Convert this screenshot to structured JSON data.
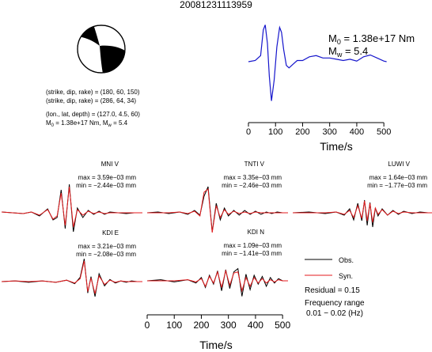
{
  "title": "20081231113959",
  "mechanism": {
    "line1": "(strike, dip, rake) = (180, 60, 150)",
    "line2": "(strike, dip, rake) = (286, 64, 34)",
    "line3": "(lon., lat, depth) = (127.0, 4.5, 60)",
    "m0_prefix": "M",
    "m0_sub": "0",
    "m0_value": " = 1.38e+17 Nm, M",
    "mw_sub": "w",
    "mw_value": " = 5.4"
  },
  "stf": {
    "m0_label": "M",
    "m0_sub": "0",
    "m0_text": " = 1.38e+17 Nm",
    "mw_label": "M",
    "mw_sub": "w",
    "mw_text": " = 5.4",
    "xlabel": "Time/s"
  },
  "stations": [
    {
      "name": "MNI V",
      "max": "max = 3.59e−03 mm",
      "min": "min = −2.44e−03 mm"
    },
    {
      "name": "TNTI V",
      "max": "max = 3.35e−03 mm",
      "min": "min = −2.46e−03 mm"
    },
    {
      "name": "LUWI V",
      "max": "max = 1.64e−03 mm",
      "min": "min = −1.77e−03 mm"
    },
    {
      "name": "KDI E",
      "max": "max = 3.21e−03 mm",
      "min": "min = −2.08e−03 mm"
    },
    {
      "name": "KDI N",
      "max": "max = 1.09e−03 mm",
      "min": "min = −1.41e−03 mm"
    }
  ],
  "bottom_axis": {
    "xlabel": "Time/s"
  },
  "legend": {
    "obs_label": "Obs.",
    "syn_label": "Syn.",
    "residual": "Residual = 0.15",
    "freq_title": "Frequency range",
    "freq_value": "0.01 − 0.02 (Hz)"
  },
  "colors": {
    "obs": "#000000",
    "syn": "#e41a1c",
    "stf": "#1515cc",
    "beachball": "#000000"
  },
  "chart_data": [
    {
      "type": "line",
      "name": "source-time-function",
      "x": [
        0,
        25,
        45,
        55,
        62,
        70,
        77,
        85,
        95,
        105,
        115,
        122,
        130,
        140,
        150,
        165,
        180,
        200,
        225,
        250,
        275,
        300,
        325,
        350,
        375,
        400,
        425,
        450,
        475,
        500,
        510
      ],
      "y": [
        0.0,
        0.1,
        0.5,
        2.6,
        3.0,
        1.5,
        -1.2,
        -3.2,
        -1.5,
        1.2,
        2.8,
        2.4,
        1.0,
        -0.3,
        -0.5,
        -0.2,
        0.1,
        0.1,
        0.4,
        0.5,
        0.3,
        0.3,
        0.2,
        0.1,
        0.2,
        0.05,
        0.4,
        0.55,
        0.3,
        0.05,
        0.0
      ],
      "xlim": [
        0,
        520
      ],
      "xticks": [
        0,
        100,
        200,
        300,
        400,
        500
      ],
      "xlabel": "Time/s"
    },
    {
      "type": "line",
      "name": "waveform-comparison",
      "xlim": [
        0,
        520
      ],
      "xticks": [
        0,
        100,
        200,
        300,
        400,
        500
      ],
      "xlabel": "Time/s",
      "panels": [
        {
          "station": "MNI V",
          "series": [
            {
              "name": "Obs.",
              "x": [
                0,
                40,
                80,
                110,
                140,
                170,
                190,
                205,
                220,
                235,
                250,
                265,
                280,
                300,
                320,
                340,
                360,
                380,
                400,
                430,
                460,
                490,
                520
              ],
              "y": [
                0.1,
                0.0,
                -0.1,
                0.1,
                -0.4,
                0.5,
                -0.9,
                -0.6,
                2.9,
                -2.0,
                3.6,
                -2.4,
                0.6,
                -0.6,
                0.3,
                -0.2,
                0.2,
                -0.2,
                0.1,
                0.0,
                -0.1,
                0.0,
                0.0
              ]
            },
            {
              "name": "Syn.",
              "x": [
                0,
                40,
                80,
                110,
                140,
                170,
                190,
                205,
                220,
                235,
                250,
                265,
                280,
                300,
                320,
                340,
                360,
                380,
                400,
                430,
                460,
                490,
                520
              ],
              "y": [
                0.1,
                0.0,
                -0.1,
                0.1,
                -0.3,
                0.4,
                -0.8,
                -0.4,
                2.5,
                -1.6,
                3.3,
                -1.8,
                0.4,
                -0.3,
                0.2,
                -0.1,
                0.1,
                -0.1,
                0.0,
                0.0,
                0.0,
                0.0,
                0.0
              ]
            }
          ]
        },
        {
          "station": "TNTI V",
          "series": [
            {
              "name": "Obs.",
              "x": [
                0,
                40,
                80,
                120,
                150,
                175,
                195,
                210,
                225,
                240,
                255,
                270,
                285,
                300,
                320,
                340,
                360,
                380,
                400,
                420,
                440,
                460,
                480,
                500,
                520
              ],
              "y": [
                0.0,
                0.1,
                -0.1,
                0.1,
                -0.2,
                0.3,
                -0.3,
                2.1,
                3.3,
                -2.4,
                1.2,
                -0.9,
                0.6,
                -0.4,
                0.3,
                -0.3,
                0.3,
                -0.2,
                0.2,
                -0.2,
                0.1,
                -0.1,
                0.1,
                0.0,
                0.0
              ]
            },
            {
              "name": "Syn.",
              "x": [
                0,
                40,
                80,
                120,
                150,
                175,
                195,
                210,
                225,
                240,
                255,
                270,
                285,
                300,
                320,
                340,
                360,
                380,
                400,
                420,
                440,
                460,
                480,
                500,
                520
              ],
              "y": [
                0.0,
                0.0,
                0.0,
                0.1,
                -0.1,
                0.2,
                -0.4,
                2.6,
                3.0,
                -2.5,
                0.9,
                -0.6,
                0.4,
                -0.2,
                0.2,
                -0.1,
                0.1,
                -0.1,
                0.1,
                0.0,
                0.0,
                0.0,
                0.0,
                0.0,
                0.0
              ]
            }
          ]
        },
        {
          "station": "LUWI V",
          "series": [
            {
              "name": "Obs.",
              "x": [
                0,
                60,
                120,
                160,
                190,
                210,
                225,
                240,
                255,
                265,
                275,
                285,
                295,
                305,
                315,
                330,
                350,
                370,
                390,
                410,
                440,
                470,
                500,
                520
              ],
              "y": [
                0.0,
                0.1,
                -0.1,
                0.1,
                -0.3,
                0.5,
                -0.9,
                1.2,
                -1.0,
                1.6,
                -1.6,
                1.3,
                -1.8,
                0.6,
                -0.4,
                0.5,
                -0.3,
                0.3,
                -0.2,
                0.2,
                -0.1,
                0.1,
                0.0,
                0.0
              ]
            },
            {
              "name": "Syn.",
              "x": [
                0,
                60,
                120,
                160,
                190,
                210,
                225,
                240,
                255,
                265,
                275,
                285,
                295,
                305,
                315,
                330,
                350,
                370,
                390,
                410,
                440,
                470,
                500,
                520
              ],
              "y": [
                0.0,
                0.0,
                0.0,
                0.1,
                -0.2,
                0.3,
                -0.6,
                0.9,
                -0.7,
                1.5,
                -1.0,
                1.2,
                -1.2,
                0.6,
                -0.2,
                0.4,
                -0.3,
                0.2,
                -0.1,
                0.1,
                0.0,
                0.0,
                0.0,
                0.0
              ]
            }
          ]
        },
        {
          "station": "KDI E",
          "series": [
            {
              "name": "Obs.",
              "x": [
                0,
                50,
                100,
                150,
                200,
                240,
                270,
                290,
                305,
                318,
                330,
                345,
                360,
                380,
                400,
                420,
                440,
                460,
                480,
                500,
                520
              ],
              "y": [
                0.0,
                0.1,
                -0.1,
                0.1,
                -0.1,
                0.2,
                -0.3,
                0.6,
                3.2,
                -1.6,
                0.7,
                -2.1,
                1.1,
                -0.6,
                0.3,
                -0.2,
                0.1,
                -0.1,
                0.1,
                0.0,
                0.0
              ]
            },
            {
              "name": "Syn.",
              "x": [
                0,
                50,
                100,
                150,
                200,
                240,
                270,
                290,
                305,
                318,
                330,
                345,
                360,
                380,
                400,
                420,
                440,
                460,
                480,
                500,
                520
              ],
              "y": [
                0.0,
                0.1,
                0.0,
                0.1,
                -0.1,
                0.2,
                -0.2,
                0.4,
                2.9,
                -1.4,
                0.5,
                -1.7,
                0.8,
                -0.4,
                0.2,
                -0.1,
                0.1,
                0.0,
                0.0,
                0.0,
                0.0
              ]
            }
          ]
        },
        {
          "station": "KDI N",
          "series": [
            {
              "name": "Obs.",
              "x": [
                0,
                50,
                100,
                150,
                180,
                200,
                215,
                230,
                245,
                260,
                275,
                290,
                305,
                320,
                335,
                350,
                365,
                380,
                395,
                410,
                425,
                440,
                455,
                470,
                485,
                500,
                520
              ],
              "y": [
                0.0,
                0.1,
                -0.1,
                0.1,
                -0.2,
                0.3,
                -0.6,
                0.5,
                -0.3,
                0.9,
                -0.9,
                1.0,
                -0.7,
                0.8,
                1.1,
                -1.4,
                0.6,
                -0.8,
                0.5,
                -0.3,
                0.4,
                -0.5,
                0.3,
                -0.2,
                0.2,
                0.0,
                0.0
              ]
            },
            {
              "name": "Syn.",
              "x": [
                0,
                50,
                100,
                150,
                180,
                200,
                215,
                230,
                245,
                260,
                275,
                290,
                305,
                320,
                335,
                350,
                365,
                380,
                395,
                410,
                425,
                440,
                455,
                470,
                485,
                500,
                520
              ],
              "y": [
                0.0,
                0.0,
                0.0,
                0.1,
                -0.1,
                0.2,
                -0.5,
                0.4,
                -0.2,
                0.8,
                -0.6,
                0.9,
                -0.4,
                0.7,
                0.8,
                -0.9,
                0.3,
                -0.5,
                0.3,
                -0.2,
                0.2,
                -0.2,
                0.1,
                -0.1,
                0.1,
                0.0,
                0.0
              ]
            }
          ]
        }
      ]
    }
  ]
}
